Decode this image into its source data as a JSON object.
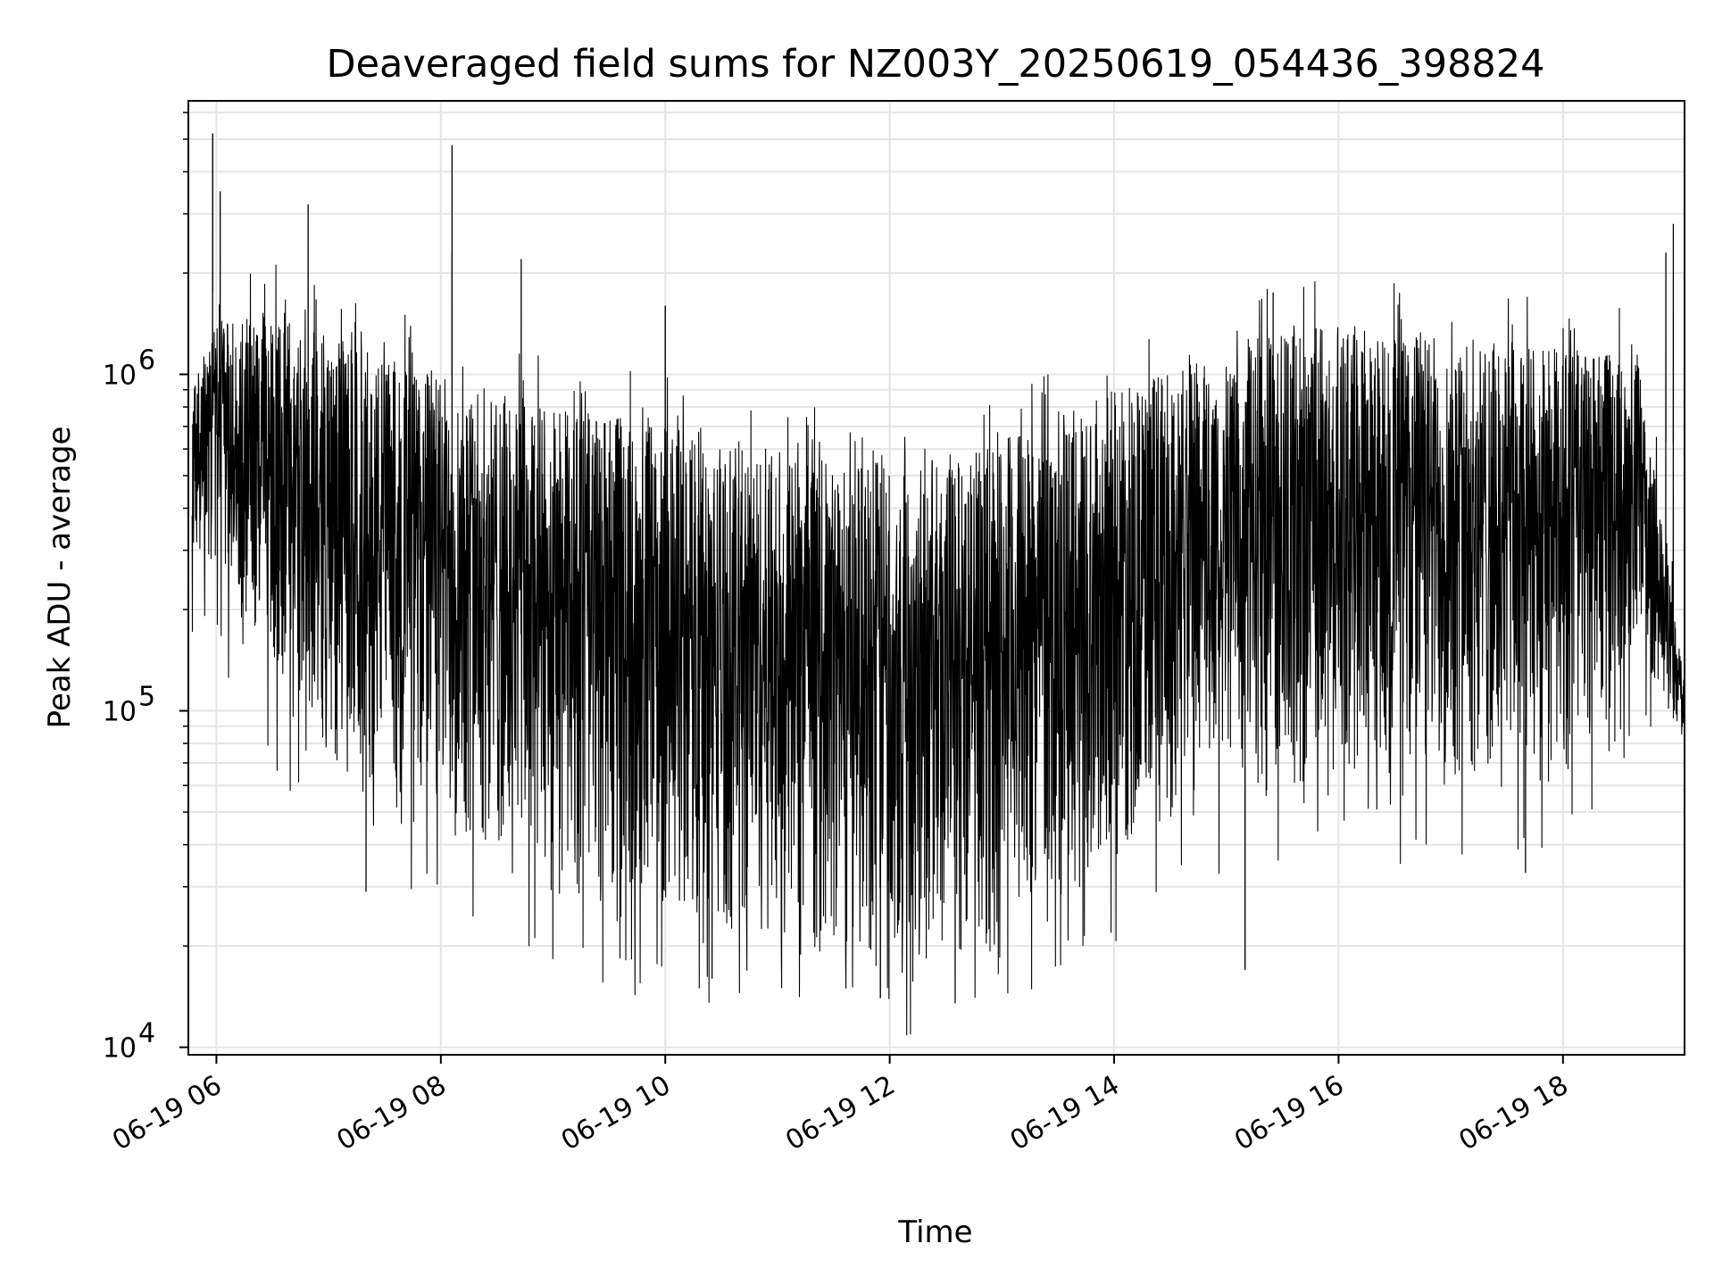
{
  "chart_data": {
    "type": "line",
    "title": "Deaveraged field sums for NZ003Y_20250619_054436_398824",
    "xlabel": "Time",
    "ylabel": "Peak ADU - average",
    "y_scale": "log",
    "ylim": [
      9500,
      6500000
    ],
    "y_major_ticks": [
      {
        "value": 10000,
        "base": "10",
        "exp": "4"
      },
      {
        "value": 100000,
        "base": "10",
        "exp": "5"
      },
      {
        "value": 1000000,
        "base": "10",
        "exp": "6"
      }
    ],
    "xlim": [
      "2025-06-19 05:45",
      "2025-06-19 19:05"
    ],
    "x_ticks": [
      {
        "value": "2025-06-19 06:00",
        "label": "06-19 06"
      },
      {
        "value": "2025-06-19 08:00",
        "label": "06-19 08"
      },
      {
        "value": "2025-06-19 10:00",
        "label": "06-19 10"
      },
      {
        "value": "2025-06-19 12:00",
        "label": "06-19 12"
      },
      {
        "value": "2025-06-19 14:00",
        "label": "06-19 14"
      },
      {
        "value": "2025-06-19 16:00",
        "label": "06-19 16"
      },
      {
        "value": "2025-06-19 18:00",
        "label": "06-19 18"
      }
    ],
    "grid": true,
    "legend": "none",
    "line_color": "#000000",
    "grid_color": "#e5e5e5",
    "series": [
      {
        "envelope": {
          "time": [
            "05:47",
            "06:00",
            "06:30",
            "07:00",
            "08:00",
            "09:00",
            "10:00",
            "11:00",
            "11:30",
            "12:00",
            "12:30",
            "13:00",
            "14:00",
            "15:00",
            "15:30",
            "16:00",
            "17:00",
            "18:00",
            "18:40",
            "18:55",
            "19:05"
          ],
          "typical_low": [
            300000,
            250000,
            120000,
            70000,
            45000,
            28000,
            24000,
            20000,
            18000,
            19000,
            18000,
            22000,
            35000,
            60000,
            55000,
            60000,
            60000,
            60000,
            150000,
            100000,
            80000
          ],
          "typical_high": [
            900000,
            1500000,
            1600000,
            1300000,
            1000000,
            800000,
            700000,
            600000,
            550000,
            600000,
            550000,
            650000,
            900000,
            1200000,
            1400000,
            1400000,
            1300000,
            1200000,
            1100000,
            300000,
            120000
          ]
        },
        "spikes": [
          {
            "time": "05:58",
            "value": 5200000
          },
          {
            "time": "06:02",
            "value": 3500000
          },
          {
            "time": "06:49",
            "value": 3200000
          },
          {
            "time": "08:06",
            "value": 2300000
          },
          {
            "time": "08:06",
            "value": 4800000
          },
          {
            "time": "08:43",
            "value": 2200000
          },
          {
            "time": "10:00",
            "value": 1600000
          },
          {
            "time": "15:25",
            "value": 1750000
          },
          {
            "time": "18:55",
            "value": 2300000
          },
          {
            "time": "18:59",
            "value": 2800000
          }
        ],
        "dips": [
          {
            "time": "07:20",
            "value": 29000
          },
          {
            "time": "10:25",
            "value": 16000
          },
          {
            "time": "11:55",
            "value": 14000
          },
          {
            "time": "12:35",
            "value": 13500
          },
          {
            "time": "15:10",
            "value": 17000
          },
          {
            "time": "17:40",
            "value": 33000
          }
        ]
      }
    ]
  }
}
